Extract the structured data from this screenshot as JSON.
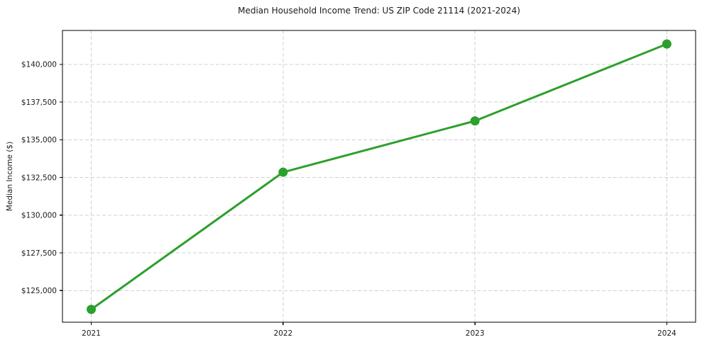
{
  "page": {
    "background_color": "#ffffff"
  },
  "chart_data": {
    "type": "line",
    "title": "Median Household Income Trend: US ZIP Code 21114 (2021-2024)",
    "xlabel": "",
    "ylabel": "Median Income ($)",
    "x": [
      2021,
      2022,
      2023,
      2024
    ],
    "xtick_labels": [
      "2021",
      "2022",
      "2023",
      "2024"
    ],
    "values": [
      123750,
      132850,
      136250,
      141350
    ],
    "yticks": [
      125000,
      127500,
      130000,
      132500,
      135000,
      137500,
      140000
    ],
    "ytick_labels": [
      "$125,000",
      "$127,500",
      "$130,000",
      "$132,500",
      "$135,000",
      "$137,500",
      "$140,000"
    ],
    "ylim": [
      122900,
      142250
    ],
    "xlim": [
      2020.85,
      2024.15
    ],
    "line_color": "#2ca02c",
    "marker": "circle",
    "marker_color": "#2ca02c",
    "grid": {
      "visible": true,
      "style": "dashed",
      "color": "#d0d0d0"
    },
    "axes": {
      "spine_color": "#000000",
      "tick_color": "#000000",
      "text_color": "#1a1a1a"
    },
    "legend": "none"
  }
}
